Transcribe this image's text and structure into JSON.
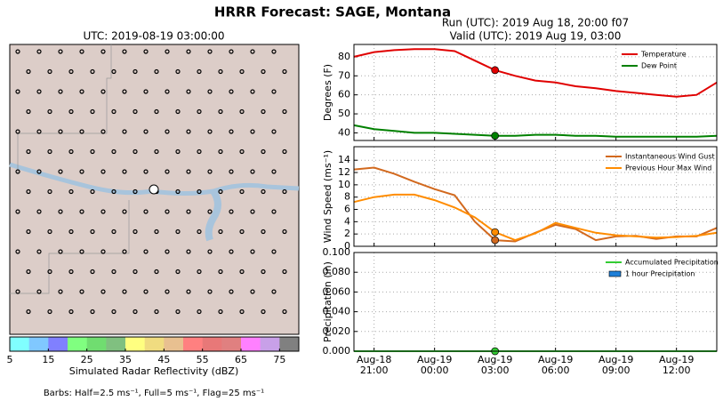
{
  "title": "HRRR Forecast: SAGE, Montana",
  "run_label": "Run (UTC): 2019 Aug 18, 20:00 f07",
  "valid_label": "Valid (UTC): 2019 Aug 19, 03:00",
  "map": {
    "title": "UTC: 2019-08-19 03:00:00",
    "colorbar": {
      "label": "Simulated Radar Reflectivity (dBZ)",
      "lim": [
        5,
        80
      ],
      "ticks": [
        5,
        15,
        25,
        35,
        45,
        55,
        65,
        75
      ],
      "colors": [
        "#80ffff",
        "#80c8ff",
        "#8080ff",
        "#80ff80",
        "#70dd70",
        "#80c080",
        "#ffff80",
        "#f0dc80",
        "#e8c090",
        "#ff8080",
        "#e87878",
        "#e08080",
        "#ff80ff",
        "#c8a0e8",
        "#808080"
      ]
    },
    "note": "Barbs: Half=2.5 ms⁻¹, Full=5 ms⁻¹, Flag=25 ms⁻¹"
  },
  "chart_data": [
    {
      "type": "line",
      "ylabel": "Degrees (F)",
      "ylim": [
        36,
        86.5
      ],
      "yticks": [
        40,
        50,
        60,
        70,
        80
      ],
      "grid": true,
      "legend": "upper right",
      "marker_at": "Aug-19\n03:00",
      "series": [
        {
          "name": "Temperature",
          "color": "#e00000",
          "values": [
            80,
            82.5,
            83.5,
            84,
            84,
            83,
            78,
            73,
            70,
            67.5,
            66.5,
            64.5,
            63.5,
            62,
            61,
            60,
            59,
            60,
            66.5
          ]
        },
        {
          "name": "Dew Point",
          "color": "#008000",
          "values": [
            44,
            42,
            41,
            40,
            40,
            39.5,
            39,
            38.5,
            38.5,
            39,
            39,
            38.5,
            38.5,
            38,
            38,
            38,
            38,
            38,
            38.5
          ]
        }
      ]
    },
    {
      "type": "line",
      "ylabel": "Wind Speed (ms⁻¹)",
      "ylim": [
        0,
        16.2
      ],
      "yticks": [
        0,
        2,
        4,
        6,
        8,
        10,
        12,
        14
      ],
      "grid": true,
      "legend": "upper right",
      "marker_at": "Aug-19\n03:00",
      "series": [
        {
          "name": "Instantaneous Wind Gust",
          "color": "#d2691e",
          "values": [
            12.5,
            12.8,
            11.8,
            10.5,
            9.3,
            8.3,
            4,
            1,
            0.8,
            2.2,
            3.5,
            2.8,
            1,
            1.6,
            1.7,
            1.2,
            1.6,
            1.6,
            3
          ]
        },
        {
          "name": "Previous Hour Max Wind",
          "color": "#ff8c00",
          "values": [
            7.2,
            8,
            8.4,
            8.4,
            7.5,
            6.3,
            4.7,
            2.3,
            1,
            2.1,
            3.8,
            3,
            2.2,
            1.8,
            1.6,
            1.4,
            1.5,
            1.7,
            2.2
          ]
        }
      ]
    },
    {
      "type": "bar",
      "ylabel": "Precipitation (in)",
      "ylim": [
        0,
        0.1
      ],
      "yticks": [
        {
          "value": 0,
          "label": "0.000"
        },
        {
          "value": 0.02,
          "label": "0.020"
        },
        {
          "value": 0.04,
          "label": "0.040"
        },
        {
          "value": 0.06,
          "label": "0.060"
        },
        {
          "value": 0.08,
          "label": "0.080"
        },
        {
          "value": 0.1,
          "label": "0.100"
        }
      ],
      "grid": true,
      "legend": "upper right",
      "marker_at": "Aug-19\n03:00",
      "categories": [
        null,
        "Aug-18\n21:00",
        null,
        null,
        "Aug-19\n00:00",
        null,
        null,
        "Aug-19\n03:00",
        null,
        null,
        "Aug-19\n06:00",
        null,
        null,
        "Aug-19\n09:00",
        null,
        null,
        "Aug-19\n12:00",
        null,
        null
      ],
      "series": [
        {
          "name": "Accumulated Precipitation",
          "kind": "line",
          "color": "#33cc33",
          "values": [
            0,
            0,
            0,
            0,
            0,
            0,
            0,
            0,
            0,
            0,
            0,
            0,
            0,
            0,
            0,
            0,
            0,
            0,
            0
          ]
        },
        {
          "name": "1 hour Precipitation",
          "kind": "bar",
          "color": "#1e7fd8",
          "values": [
            0,
            0,
            0,
            0,
            0,
            0,
            0,
            0,
            0,
            0,
            0,
            0,
            0,
            0,
            0,
            0,
            0,
            0,
            0
          ]
        }
      ]
    }
  ]
}
